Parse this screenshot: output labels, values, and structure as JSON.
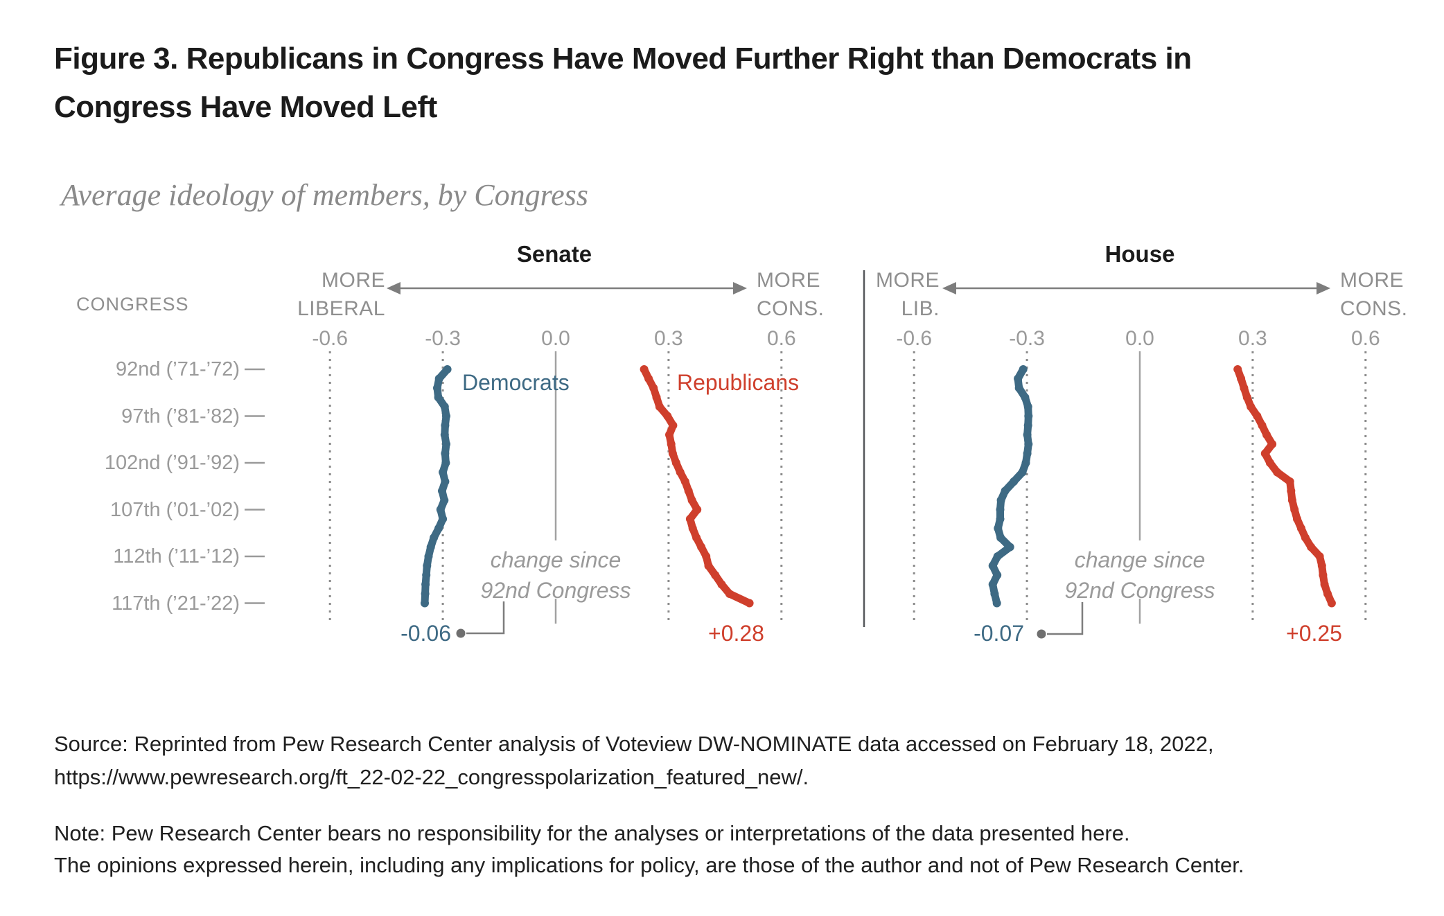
{
  "title": "Figure 3. Republicans in Congress Have Moved Further Right than Democrats in\nCongress Have Moved Left",
  "subtitle": "Average ideology of members, by Congress",
  "left_column": {
    "header": "CONGRESS"
  },
  "axis_direction_labels": {
    "senate_left": "MORE\nLIBERAL",
    "senate_right": "MORE\nCONS.",
    "house_left": "MORE\nLIB.",
    "house_right": "MORE\nCONS."
  },
  "annotation": "change since\n92nd Congress",
  "source": "Source: Reprinted from Pew Research Center analysis of Voteview DW-NOMINATE data accessed on February 18, 2022,\nhttps://www.pewresearch.org/ft_22-02-22_congresspolarization_featured_new/.",
  "note": "Note: Pew Research Center bears no responsibility for the analyses or interpretations of the data presented here.\nThe opinions expressed herein, including any implications for policy, are those of the author and not of Pew Research Center.",
  "colors": {
    "democrat": "#3e6a84",
    "republican": "#cf3f2c",
    "axis_gray": "#9a9a9a"
  },
  "chart_data": {
    "type": "line",
    "orientation": "vertical-time",
    "x_axis": {
      "ticks": [
        -0.6,
        -0.3,
        0,
        0.3,
        0.6
      ],
      "tick_labels": [
        "-0.6",
        "-0.3",
        "0.0",
        "0.3",
        "0.6"
      ],
      "range": [
        -0.6,
        0.6
      ],
      "grid": "dotted",
      "zero_line": "solid"
    },
    "congress_range": [
      92,
      117
    ],
    "congress_rows": [
      {
        "congress": 92,
        "label": "92nd (’71-’72)"
      },
      {
        "congress": 97,
        "label": "97th (’81-’82)"
      },
      {
        "congress": 102,
        "label": "102nd (’91-’92)"
      },
      {
        "congress": 107,
        "label": "107th (’01-’02)"
      },
      {
        "congress": 112,
        "label": "112th (’11-’12)"
      },
      {
        "congress": 117,
        "label": "117th (’21-’22)"
      }
    ],
    "panels": [
      {
        "name": "Senate",
        "series": [
          {
            "name": "Democrats",
            "color": "#3e6a84",
            "values": [
              -0.288,
              -0.31,
              -0.315,
              -0.312,
              -0.295,
              -0.291,
              -0.294,
              -0.295,
              -0.291,
              -0.294,
              -0.292,
              -0.3,
              -0.294,
              -0.302,
              -0.296,
              -0.306,
              -0.3,
              -0.311,
              -0.324,
              -0.332,
              -0.338,
              -0.342,
              -0.344,
              -0.346,
              -0.347,
              -0.348
            ]
          },
          {
            "name": "Republicans",
            "color": "#cf3f2c",
            "values": [
              0.235,
              0.247,
              0.26,
              0.268,
              0.276,
              0.297,
              0.312,
              0.302,
              0.307,
              0.311,
              0.32,
              0.331,
              0.344,
              0.353,
              0.362,
              0.376,
              0.357,
              0.364,
              0.374,
              0.387,
              0.4,
              0.406,
              0.424,
              0.441,
              0.462,
              0.515
            ]
          }
        ],
        "change_labels": {
          "democrats": "-0.06",
          "republicans": "+0.28"
        }
      },
      {
        "name": "House",
        "series": [
          {
            "name": "Democrats",
            "color": "#3e6a84",
            "values": [
              -0.31,
              -0.324,
              -0.321,
              -0.305,
              -0.297,
              -0.296,
              -0.297,
              -0.299,
              -0.296,
              -0.299,
              -0.303,
              -0.312,
              -0.335,
              -0.358,
              -0.369,
              -0.371,
              -0.371,
              -0.377,
              -0.37,
              -0.345,
              -0.378,
              -0.391,
              -0.379,
              -0.391,
              -0.386,
              -0.38
            ]
          },
          {
            "name": "Republicans",
            "color": "#cf3f2c",
            "values": [
              0.26,
              0.269,
              0.277,
              0.285,
              0.295,
              0.312,
              0.325,
              0.337,
              0.352,
              0.333,
              0.346,
              0.365,
              0.399,
              0.402,
              0.405,
              0.411,
              0.418,
              0.429,
              0.44,
              0.455,
              0.478,
              0.484,
              0.487,
              0.491,
              0.499,
              0.51
            ]
          }
        ],
        "change_labels": {
          "democrats": "-0.07",
          "republicans": "+0.25"
        }
      }
    ]
  }
}
